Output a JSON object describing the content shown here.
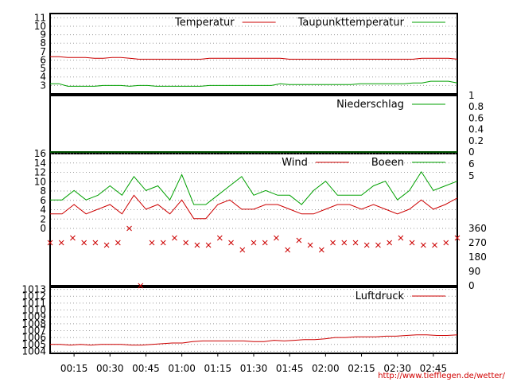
{
  "credit": "http://www.tiefflegen.de/wetter/",
  "time_ticks": [
    "00:15",
    "00:30",
    "00:45",
    "01:00",
    "01:15",
    "01:30",
    "01:45",
    "02:00",
    "02:15",
    "02:30",
    "02:45"
  ],
  "colors": {
    "temp": "#cc0000",
    "dew": "#00a000",
    "rain": "#00a000",
    "wind": "#cc0000",
    "gust": "#00a000",
    "dir": "#cc0000",
    "pressure": "#cc0000"
  },
  "chart_data": [
    {
      "type": "line",
      "panel": "temperature",
      "x_range": [
        "00:00",
        "02:55"
      ],
      "ylim": [
        2,
        11.5
      ],
      "y_ticks": [
        3,
        4,
        5,
        6,
        7,
        8,
        9,
        10,
        11
      ],
      "series": [
        {
          "name": "Temperatur",
          "color": "#cc0000",
          "values": [
            6.4,
            6.4,
            6.3,
            6.3,
            6.3,
            6.2,
            6.2,
            6.3,
            6.3,
            6.2,
            6.1,
            6.1,
            6.1,
            6.1,
            6.1,
            6.1,
            6.1,
            6.1,
            6.2,
            6.2,
            6.2,
            6.2,
            6.2,
            6.2,
            6.2,
            6.2,
            6.2,
            6.1,
            6.1,
            6.1,
            6.1,
            6.1,
            6.1,
            6.1,
            6.1,
            6.1,
            6.1,
            6.1,
            6.1,
            6.1,
            6.1,
            6.1,
            6.2,
            6.2,
            6.2,
            6.2,
            6.1
          ]
        },
        {
          "name": "Taupunkttemperatur",
          "color": "#00a000",
          "values": [
            3.2,
            3.2,
            2.9,
            2.9,
            2.9,
            2.9,
            3.0,
            3.0,
            3.0,
            2.9,
            3.0,
            3.0,
            2.9,
            2.9,
            2.9,
            2.9,
            2.9,
            2.9,
            3.0,
            3.0,
            3.0,
            3.0,
            3.0,
            3.0,
            3.0,
            3.0,
            3.2,
            3.1,
            3.1,
            3.1,
            3.1,
            3.1,
            3.1,
            3.1,
            3.1,
            3.2,
            3.2,
            3.2,
            3.2,
            3.2,
            3.2,
            3.3,
            3.3,
            3.5,
            3.5,
            3.5,
            3.3
          ]
        }
      ]
    },
    {
      "type": "line",
      "panel": "precipitation",
      "ylim": [
        0,
        1
      ],
      "y_ticks": [
        "0",
        "0.2",
        "0.4",
        "0.6",
        "0.8",
        "1"
      ],
      "series": [
        {
          "name": "Niederschlag",
          "color": "#00a000",
          "values": [
            0,
            0
          ]
        }
      ]
    },
    {
      "type": "line",
      "panel": "wind",
      "ylim": [
        0,
        16
      ],
      "y_ticks": [
        0,
        2,
        4,
        6,
        8,
        10,
        12,
        14,
        16
      ],
      "y2_ticks": [
        "5",
        "6"
      ],
      "series": [
        {
          "name": "Wind",
          "color": "#cc0000",
          "values": [
            3.1,
            3.1,
            5.1,
            3.1,
            4.1,
            5.1,
            3.1,
            7.1,
            4.1,
            5.1,
            3.1,
            6.1,
            2.1,
            2.1,
            5.1,
            6.1,
            4.1,
            4.1,
            5.1,
            5.1,
            4.1,
            3.1,
            3.1,
            4.1,
            5.1,
            5.1,
            4.1,
            5.1,
            4.1,
            3.1,
            4.1,
            6.1,
            4.1,
            5.1,
            6.5
          ]
        },
        {
          "name": "Boeen",
          "color": "#00a000",
          "values": [
            6.1,
            6.1,
            8.1,
            6.1,
            7.1,
            9.1,
            7.1,
            11.1,
            8.1,
            9.1,
            6.1,
            11.5,
            5.1,
            5.1,
            7.1,
            9.1,
            11.1,
            7.1,
            8.1,
            7.1,
            7.1,
            5.1,
            8.1,
            10.1,
            7.1,
            7.1,
            7.1,
            9.1,
            10.1,
            6.1,
            8.1,
            12.1,
            8.1,
            9.1,
            10.1
          ]
        }
      ]
    },
    {
      "type": "scatter",
      "panel": "wind_direction",
      "ylim": [
        0,
        360
      ],
      "y_ticks": [
        "0",
        "90",
        "180",
        "270",
        "360"
      ],
      "series": [
        {
          "name": "",
          "color": "#cc0000",
          "values": [
            270,
            270,
            300,
            270,
            270,
            255,
            270,
            360,
            0,
            270,
            270,
            300,
            270,
            255,
            255,
            300,
            270,
            225,
            270,
            270,
            300,
            225,
            285,
            255,
            225,
            270,
            270,
            270,
            255,
            255,
            270,
            300,
            270,
            255,
            255,
            270,
            300
          ]
        }
      ]
    },
    {
      "type": "line",
      "panel": "pressure",
      "ylim": [
        1003.7,
        1013.3
      ],
      "y_ticks": [
        1004,
        1005,
        1006,
        1007,
        1008,
        1009,
        1010,
        1011,
        1012,
        1013
      ],
      "series": [
        {
          "name": "Luftdruck",
          "color": "#cc0000",
          "values": [
            1005.0,
            1005.0,
            1004.9,
            1005.0,
            1004.9,
            1005.0,
            1005.0,
            1005.0,
            1004.9,
            1004.9,
            1005.0,
            1005.1,
            1005.2,
            1005.2,
            1005.4,
            1005.5,
            1005.5,
            1005.5,
            1005.5,
            1005.5,
            1005.4,
            1005.4,
            1005.6,
            1005.5,
            1005.6,
            1005.7,
            1005.7,
            1005.8,
            1006.0,
            1006.0,
            1006.1,
            1006.1,
            1006.1,
            1006.2,
            1006.2,
            1006.3,
            1006.4,
            1006.4,
            1006.3,
            1006.3,
            1006.4
          ]
        }
      ]
    }
  ]
}
